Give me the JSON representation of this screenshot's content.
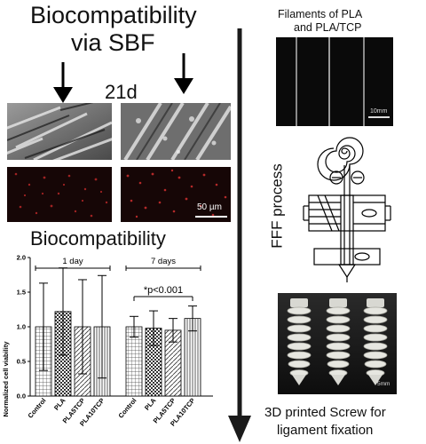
{
  "title": {
    "line1": "Biocompatibility",
    "line2": "via SBF"
  },
  "sbf_panel": {
    "duration_label": "21d",
    "scale_bar_label": "50 µm"
  },
  "section2_title": "Biocompatibility",
  "filaments": {
    "title_line1": "Filaments of PLA",
    "title_line2": "and PLA/TCP",
    "scale_label": "10mm"
  },
  "fff": {
    "label": "FFF process"
  },
  "screw_photo": {
    "scale_label": "5mm"
  },
  "caption": {
    "line1": "3D printed Screw for",
    "line2": "ligament fixation"
  },
  "chart_data": {
    "type": "bar",
    "ylabel": "Normalized cell viability",
    "ylim": [
      0,
      2.0
    ],
    "yticks": [
      0.0,
      0.5,
      1.0,
      1.5,
      2.0
    ],
    "yticklabels": [
      "0.0",
      "0.5",
      "1.0",
      "1.5",
      "2.0"
    ],
    "groups": [
      {
        "label": "1 day",
        "categories": [
          "Control",
          "PLA",
          "PLA5TCP",
          "PLA10TCP"
        ],
        "values": [
          1.0,
          1.22,
          1.0,
          1.0
        ],
        "errors": [
          0.63,
          0.63,
          0.68,
          0.74
        ]
      },
      {
        "label": "7 days",
        "categories": [
          "Control",
          "PLA",
          "PLA5TCP",
          "PLA10TCP"
        ],
        "values": [
          1.0,
          0.98,
          0.95,
          1.12
        ],
        "errors": [
          0.15,
          0.25,
          0.17,
          0.18
        ],
        "annotation": "*p<0.001"
      }
    ],
    "patterns": [
      "grid",
      "dots",
      "diagonal",
      "vertical"
    ]
  }
}
